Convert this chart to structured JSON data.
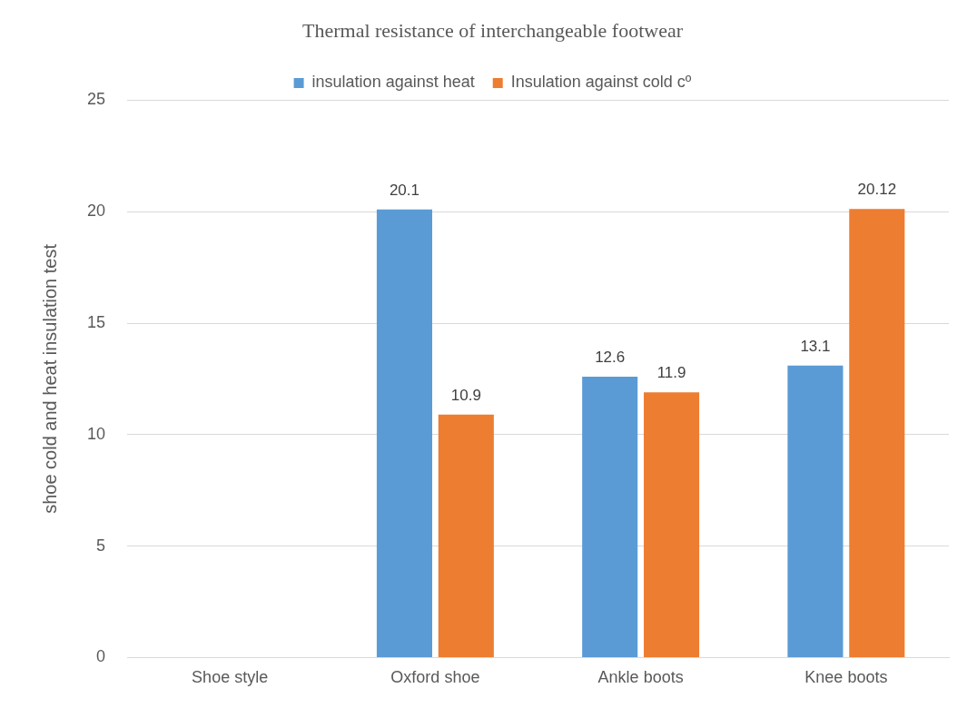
{
  "chart_data": {
    "type": "bar",
    "title": "Thermal resistance of interchangeable footwear",
    "ylabel": "shoe cold and heat insulation test",
    "categories": [
      "Shoe style",
      "Oxford shoe",
      "Ankle boots",
      "Knee boots"
    ],
    "series": [
      {
        "name": "insulation against heat",
        "color": "#5b9bd5",
        "values": [
          null,
          20.1,
          12.6,
          13.1
        ]
      },
      {
        "name": "Insulation against cold cº",
        "color": "#ed7d31",
        "values": [
          null,
          10.9,
          11.9,
          20.12
        ]
      }
    ],
    "ylim": [
      0,
      25
    ],
    "yticks": [
      0,
      5,
      10,
      15,
      20,
      25
    ],
    "grid": "y",
    "legend": "top",
    "data_labels": true
  }
}
